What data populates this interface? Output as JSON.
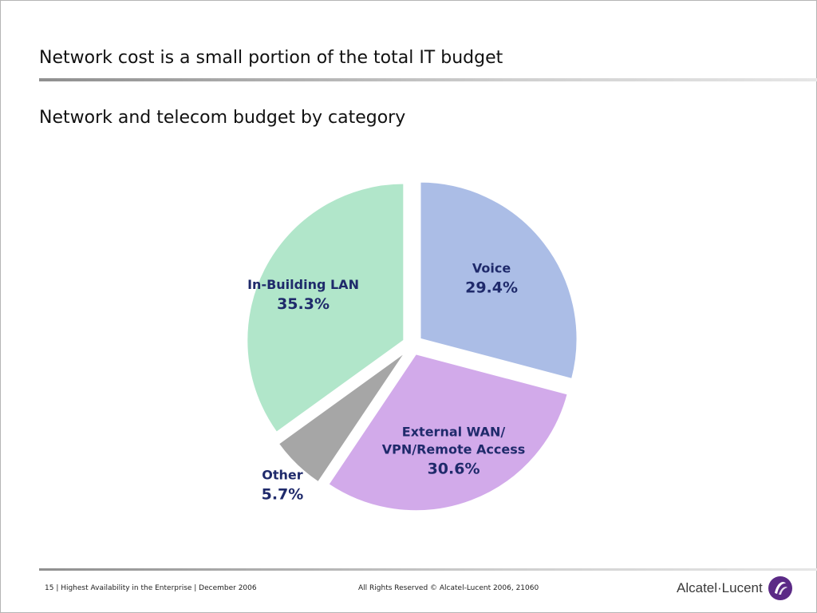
{
  "slide": {
    "title": "Network cost is a small portion of the total IT budget",
    "subtitle": "Network and telecom budget by category"
  },
  "chart_data": {
    "type": "pie",
    "title": "",
    "slices": [
      {
        "label": "Voice",
        "value": 29.4,
        "value_label": "29.4%",
        "color": "#abbde6"
      },
      {
        "label": "External WAN/ VPN/Remote Access",
        "label_lines": [
          "External WAN/",
          "VPN/Remote Access"
        ],
        "value": 30.6,
        "value_label": "30.6%",
        "color": "#d2aaea"
      },
      {
        "label": "Other",
        "value": 5.7,
        "value_label": "5.7%",
        "color": "#a6a6a6"
      },
      {
        "label": "In-Building LAN",
        "value": 35.3,
        "value_label": "35.3%",
        "color": "#b1e6ca"
      }
    ],
    "exploded": true,
    "label_color": "#1f2a6b"
  },
  "footer": {
    "left": "15 | Highest Availability in the Enterprise | December 2006",
    "center": "All Rights Reserved © Alcatel-Lucent 2006, 21060",
    "brand": "Alcatel·Lucent",
    "logo_icon": "alcatel-lucent-swirl-icon"
  }
}
